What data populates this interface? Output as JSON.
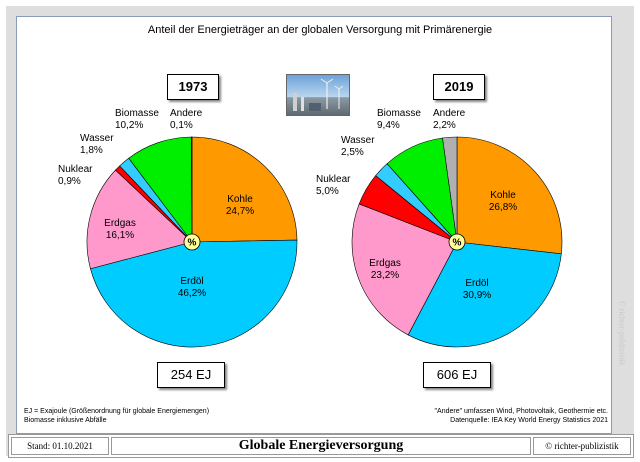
{
  "chart_data": {
    "type": "pie",
    "title": "Anteil der Energieträger an der globalen Versorgung mit Primärenergie",
    "center_label": "%",
    "charts": [
      {
        "year": "1973",
        "total": "254 EJ",
        "slices": [
          {
            "name": "Kohle",
            "value": 24.7,
            "label": "24,7%",
            "color": "#ff9900"
          },
          {
            "name": "Erdöl",
            "value": 46.2,
            "label": "46,2%",
            "color": "#00ccff"
          },
          {
            "name": "Erdgas",
            "value": 16.1,
            "label": "16,1%",
            "color": "#ff99cc"
          },
          {
            "name": "Nuklear",
            "value": 0.9,
            "label": "0,9%",
            "color": "#ff0000"
          },
          {
            "name": "Wasser",
            "value": 1.8,
            "label": "1,8%",
            "color": "#33ccff"
          },
          {
            "name": "Biomasse",
            "value": 10.2,
            "label": "10,2%",
            "color": "#00ee00"
          },
          {
            "name": "Andere",
            "value": 0.1,
            "label": "0,1%",
            "color": "#b0b0b0"
          }
        ]
      },
      {
        "year": "2019",
        "total": "606 EJ",
        "slices": [
          {
            "name": "Kohle",
            "value": 26.8,
            "label": "26,8%",
            "color": "#ff9900"
          },
          {
            "name": "Erdöl",
            "value": 30.9,
            "label": "30,9%",
            "color": "#00ccff"
          },
          {
            "name": "Erdgas",
            "value": 23.2,
            "label": "23,2%",
            "color": "#ff99cc"
          },
          {
            "name": "Nuklear",
            "value": 5.0,
            "label": "5,0%",
            "color": "#ff0000"
          },
          {
            "name": "Wasser",
            "value": 2.5,
            "label": "2,5%",
            "color": "#33ccff"
          },
          {
            "name": "Biomasse",
            "value": 9.4,
            "label": "9,4%",
            "color": "#00ee00"
          },
          {
            "name": "Andere",
            "value": 2.2,
            "label": "2,2%",
            "color": "#b0b0b0"
          }
        ]
      }
    ]
  },
  "notes": {
    "left_line1": "EJ = Exajoule (Größenordnung für globale Energiemengen)",
    "left_line2": "Biomasse inklusive Abfälle",
    "right_line1": "\"Andere\" umfassen Wind, Photovoltaik, Geothermie etc.",
    "right_line2": "Datenquelle: IEA Key World Energy Statistics 2021"
  },
  "footer": {
    "stand": "Stand: 01.10.2021",
    "title": "Globale Energieversorgung",
    "copyright": "© richter-publizistik"
  },
  "watermark": "© richter-publizistik"
}
